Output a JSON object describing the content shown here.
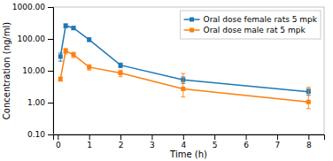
{
  "chart_data": {
    "type": "line",
    "xlabel": "Time (h)",
    "ylabel": "Concentration (ng/ml)",
    "log": "y",
    "grid": false,
    "legend": "upper right",
    "xlim": [
      -0.15,
      8.5
    ],
    "ylim": [
      0.1,
      1000.0
    ],
    "xticks": [
      0,
      1,
      2,
      3,
      4,
      5,
      6,
      7,
      8
    ],
    "yticks": [
      {
        "value": 0.1,
        "label": "0.10"
      },
      {
        "value": 1.0,
        "label": "1.00"
      },
      {
        "value": 10.0,
        "label": "10.00"
      },
      {
        "value": 100.0,
        "label": "100.00"
      },
      {
        "value": 1000.0,
        "label": "1000.00"
      }
    ],
    "hline": 0.1,
    "series": [
      {
        "name": "Oral dose female rats 5 mpk",
        "marker": "square",
        "line_style": "solid",
        "x": [
          0.083,
          0.25,
          0.5,
          1.0,
          2.0,
          4.0,
          8.0
        ],
        "values": [
          28.0,
          260.0,
          220.0,
          95.0,
          15.0,
          5.2,
          2.2
        ],
        "error_low": [
          8.0,
          35.0,
          25.0,
          12.0,
          2.5,
          1.2,
          0.5
        ],
        "error_high": [
          8.0,
          35.0,
          25.0,
          12.0,
          2.5,
          1.2,
          0.5
        ]
      },
      {
        "name": "Oral dose male rat 5 mpk",
        "marker": "square",
        "line_style": "solid",
        "x": [
          0.083,
          0.25,
          0.5,
          1.0,
          2.0,
          4.0,
          8.0
        ],
        "values": [
          5.5,
          42.0,
          32.0,
          13.0,
          8.5,
          2.7,
          1.05
        ],
        "error_low": [
          0.8,
          8.0,
          6.0,
          2.5,
          2.0,
          1.2,
          0.4
        ],
        "error_high": [
          0.8,
          8.0,
          6.0,
          2.5,
          2.0,
          5.5,
          2.0
        ]
      }
    ]
  }
}
